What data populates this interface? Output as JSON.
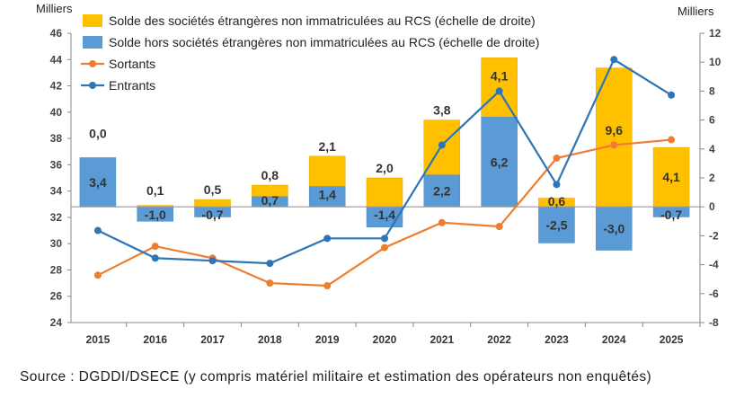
{
  "chart_data": {
    "type": "bar+line",
    "left_axis": {
      "label": "Milliers",
      "range": [
        24,
        46
      ],
      "ticks": [
        24,
        26,
        28,
        30,
        32,
        34,
        36,
        38,
        40,
        42,
        44,
        46
      ]
    },
    "right_axis": {
      "label": "Milliers",
      "range": [
        -8,
        12
      ],
      "ticks": [
        -8,
        -6,
        -4,
        -2,
        0,
        2,
        4,
        6,
        8,
        10,
        12
      ]
    },
    "categories": [
      "2015",
      "2016",
      "2017",
      "2018",
      "2019",
      "2020",
      "2021",
      "2022",
      "2023",
      "2024",
      "2025"
    ],
    "bar_series": [
      {
        "name": "Solde hors sociétés étrangères non immatriculées au RCS (échelle de droite)",
        "color": "#5b9bd5",
        "axis": "right",
        "values": [
          3.4,
          -1.0,
          -0.7,
          0.7,
          1.4,
          -1.4,
          2.2,
          6.2,
          -2.5,
          -3.0,
          -0.7
        ],
        "labels": [
          "3,4",
          "-1,0",
          "-0,7",
          "0,7",
          "1,4",
          "-1,4",
          "2,2",
          "6,2",
          "-2,5",
          "-3,0",
          "-0,7"
        ]
      },
      {
        "name": "Solde des sociétés étrangères non immatriculées au RCS (échelle de droite)",
        "color": "#ffc000",
        "axis": "right",
        "values": [
          0.0,
          0.1,
          0.5,
          0.8,
          2.1,
          2.0,
          3.8,
          4.1,
          0.6,
          9.6,
          4.1
        ],
        "labels": [
          "0,0",
          "0,1",
          "0,5",
          "0,8",
          "2,1",
          "2,0",
          "3,8",
          "4,1",
          "0,6",
          "9,6",
          "4,1"
        ]
      }
    ],
    "line_series": [
      {
        "name": "Sortants",
        "color": "#ed7d31",
        "axis": "left",
        "values": [
          27.6,
          29.8,
          28.9,
          27.0,
          26.8,
          29.7,
          31.6,
          31.3,
          36.5,
          37.5,
          37.9
        ]
      },
      {
        "name": "Entrants",
        "color": "#2e75b6",
        "axis": "left",
        "values": [
          31.0,
          28.9,
          28.7,
          28.5,
          30.4,
          30.4,
          37.5,
          41.6,
          34.5,
          44.0,
          41.3
        ]
      }
    ],
    "legend": [
      "Solde des sociétés étrangères non immatriculées au RCS (échelle de droite)",
      "Solde hors sociétés étrangères non immatriculées au RCS (échelle de droite)",
      "Sortants",
      "Entrants"
    ],
    "legend_placement": "top-left",
    "grid": false
  },
  "source": "Source : DGDDI/DSECE (y compris matériel militaire et estimation des opérateurs non enquêtés)"
}
